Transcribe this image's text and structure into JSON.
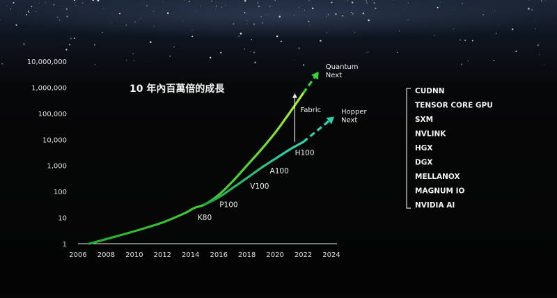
{
  "chart_data": {
    "type": "line",
    "title": "10 年內百萬倍的成長",
    "xlabel": "",
    "ylabel": "",
    "scale_y": "log",
    "xlim": [
      2006,
      2024
    ],
    "ylim": [
      1,
      10000000
    ],
    "x_ticks": [
      "2006",
      "2008",
      "2010",
      "2012",
      "2014",
      "2016",
      "2018",
      "2020",
      "2022",
      "2024"
    ],
    "y_ticks": [
      "1",
      "10",
      "100",
      "1,000",
      "10,000",
      "100,000",
      "1,000,000",
      "10,000,000"
    ],
    "grid": false,
    "series": [
      {
        "name": "",
        "color": "#3ecf3a",
        "points": [
          [
            2006.8,
            1
          ],
          [
            2008.0,
            1.5
          ],
          [
            2010.0,
            3
          ],
          [
            2012.0,
            6.5
          ],
          [
            2013.6,
            15
          ],
          [
            2014.3,
            24
          ],
          [
            2015.0,
            32
          ],
          [
            2016.0,
            75
          ],
          [
            2017.0,
            250
          ],
          [
            2018.0,
            1000
          ],
          [
            2019.0,
            4000
          ],
          [
            2020.0,
            18000
          ],
          [
            2021.0,
            100000
          ],
          [
            2022.0,
            600000
          ]
        ],
        "projection": [
          [
            2022.0,
            600000
          ],
          [
            2023.1,
            4000000
          ]
        ],
        "projection_label": [
          "Quantum",
          "Next"
        ]
      },
      {
        "name": "",
        "color": "#2ed4b0",
        "points": [
          [
            2015.0,
            32
          ],
          [
            2016.0,
            60
          ],
          [
            2017.0,
            140
          ],
          [
            2018.0,
            330
          ],
          [
            2019.0,
            800
          ],
          [
            2020.0,
            1800
          ],
          [
            2021.0,
            4000
          ],
          [
            2022.0,
            8000
          ]
        ],
        "projection": [
          [
            2022.0,
            8000
          ],
          [
            2024.2,
            75000
          ]
        ],
        "projection_label": [
          "Hopper",
          "Next"
        ]
      }
    ],
    "annotations": [
      {
        "text": "K80",
        "x": 2015.0,
        "y": 8
      },
      {
        "text": "P100",
        "x": 2016.7,
        "y": 25
      },
      {
        "text": "V100",
        "x": 2018.9,
        "y": 130
      },
      {
        "text": "A100",
        "x": 2020.3,
        "y": 500
      },
      {
        "text": "H100",
        "x": 2022.1,
        "y": 2500
      }
    ],
    "fabric": {
      "label": "Fabric",
      "x": 2021.4,
      "from": 8000,
      "to": 600000
    }
  },
  "feature_list": [
    "CUDNN",
    "TENSOR CORE GPU",
    "SXM",
    "NVLINK",
    "HGX",
    "DGX",
    "MELLANOX",
    "MAGNUM IO",
    "NVIDIA AI"
  ]
}
